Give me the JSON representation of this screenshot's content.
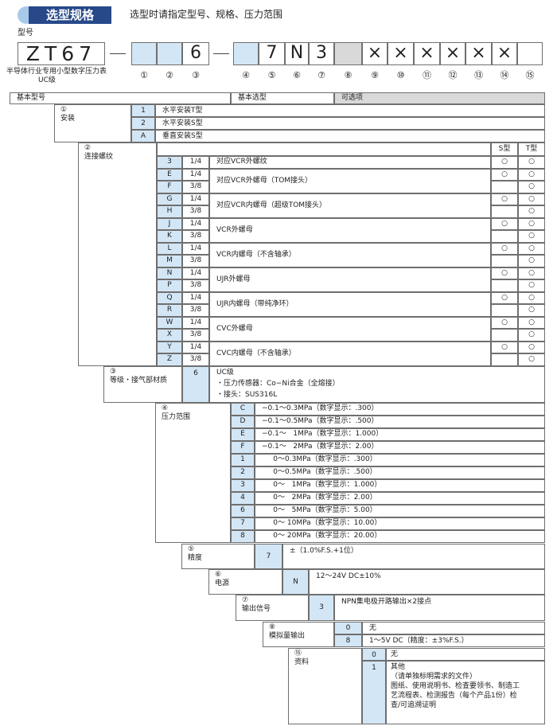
{
  "header": {
    "title": "选型规格",
    "subtitle": "选型时请指定型号、规格、压力范围"
  },
  "model": {
    "label": "型号",
    "base_code": "ZT67",
    "caption": [
      "半导体行业专用小型数字压力表",
      "UC级"
    ],
    "positions": [
      {
        "num": "①"
      },
      {
        "num": "②"
      },
      {
        "num": "③",
        "code": "6"
      },
      {
        "num": "④"
      },
      {
        "num": "⑤",
        "code": "7"
      },
      {
        "num": "⑥",
        "code": "N"
      },
      {
        "num": "⑦",
        "code": "3"
      },
      {
        "num": "⑧"
      },
      {
        "num": "⑨",
        "code": "×"
      },
      {
        "num": "⑩",
        "code": "×"
      },
      {
        "num": "⑪",
        "code": "×"
      },
      {
        "num": "⑫",
        "code": "×"
      },
      {
        "num": "⑬",
        "code": "×"
      },
      {
        "num": "⑭",
        "code": "×"
      },
      {
        "num": "⑮"
      }
    ]
  },
  "table": {
    "headers": [
      "基本型号",
      "基本选型",
      "可选项"
    ],
    "mounting": {
      "num": "①",
      "label": "安装",
      "options": [
        {
          "code": "1",
          "desc": "水平安装T型"
        },
        {
          "code": "2",
          "desc": "水平安装S型"
        },
        {
          "code": "A",
          "desc": "垂直安装S型"
        }
      ]
    },
    "thread": {
      "num": "②",
      "label": "连接螺纹",
      "columns": [
        "S型",
        "T型"
      ],
      "groups": [
        {
          "desc": "对应VCR外螺纹",
          "rows": [
            {
              "code": "3",
              "size": "1/4",
              "s": "○",
              "t": "○"
            }
          ]
        },
        {
          "desc": "对应VCR外螺母（TOM接头）",
          "rows": [
            {
              "code": "E",
              "size": "1/4",
              "s": "○",
              "t": "○"
            },
            {
              "code": "F",
              "size": "3/8",
              "t": "○"
            }
          ]
        },
        {
          "desc": "对应VCR内螺母（超级TOM接头）",
          "rows": [
            {
              "code": "G",
              "size": "1/4",
              "s": "○",
              "t": "○"
            },
            {
              "code": "H",
              "size": "3/8",
              "t": "○"
            }
          ]
        },
        {
          "desc": "VCR外螺母",
          "rows": [
            {
              "code": "J",
              "size": "1/4",
              "s": "○",
              "t": "○"
            },
            {
              "code": "K",
              "size": "3/8",
              "t": "○"
            }
          ]
        },
        {
          "desc": "VCR内螺母（不含轴承）",
          "rows": [
            {
              "code": "L",
              "size": "1/4",
              "s": "○",
              "t": "○"
            },
            {
              "code": "M",
              "size": "3/8",
              "t": "○"
            }
          ]
        },
        {
          "desc": "UJR外螺母",
          "rows": [
            {
              "code": "N",
              "size": "1/4",
              "s": "○",
              "t": "○"
            },
            {
              "code": "P",
              "size": "3/8",
              "t": "○"
            }
          ]
        },
        {
          "desc": "UJR内螺母（带纯净环）",
          "rows": [
            {
              "code": "Q",
              "size": "1/4",
              "s": "○",
              "t": "○"
            },
            {
              "code": "R",
              "size": "3/8",
              "t": "○"
            }
          ]
        },
        {
          "desc": "CVC外螺母",
          "rows": [
            {
              "code": "W",
              "size": "1/4",
              "s": "○",
              "t": "○"
            },
            {
              "code": "X",
              "size": "3/8",
              "t": "○"
            }
          ]
        },
        {
          "desc": "CVC内螺母（不含轴承）",
          "rows": [
            {
              "code": "Y",
              "size": "1/4",
              "s": "○",
              "t": "○"
            },
            {
              "code": "Z",
              "size": "3/8",
              "t": "○"
            }
          ]
        }
      ]
    },
    "grade": {
      "num": "③",
      "label": "等级・接气部材质",
      "code": "6",
      "lines": [
        "UC级",
        "・压力传感器：Co−Ni合金（全熔接）",
        "・接头：SUS316L"
      ]
    },
    "pressure": {
      "num": "④",
      "label": "压力范围",
      "options": [
        {
          "code": "C",
          "desc": "−0.1～0.3MPa（数字显示：.300）"
        },
        {
          "code": "D",
          "desc": "−0.1～0.5MPa（数字显示：.500）"
        },
        {
          "code": "E",
          "desc": "−0.1～   1MPa（数字显示：1.000）"
        },
        {
          "code": "F",
          "desc": "−0.1～   2MPa（数字显示：2.00）"
        },
        {
          "code": "1",
          "desc": "     0～0.3MPa（数字显示：.300）"
        },
        {
          "code": "2",
          "desc": "     0～0.5MPa（数字显示：.500）"
        },
        {
          "code": "3",
          "desc": "     0～   1MPa（数字显示：1.000）"
        },
        {
          "code": "4",
          "desc": "     0～   2MPa（数字显示：2.00）"
        },
        {
          "code": "6",
          "desc": "     0～   5MPa（数字显示：5.00）"
        },
        {
          "code": "7",
          "desc": "     0～ 10MPa（数字显示：10.00）"
        },
        {
          "code": "8",
          "desc": "     0～ 20MPa（数字显示：20.00）"
        }
      ]
    },
    "accuracy": {
      "num": "⑤",
      "label": "精度",
      "options": [
        {
          "code": "7",
          "desc": "±（1.0%F.S.+1位）"
        }
      ]
    },
    "power": {
      "num": "⑥",
      "label": "电源",
      "options": [
        {
          "code": "N",
          "desc": "12～24V DC±10%"
        }
      ]
    },
    "output": {
      "num": "⑦",
      "label": "输出信号",
      "options": [
        {
          "code": "3",
          "desc": "NPN集电极开路输出×2接点"
        }
      ]
    },
    "analog": {
      "num": "⑧",
      "label": "模拟量输出",
      "options": [
        {
          "code": "0",
          "desc": "无"
        },
        {
          "code": "8",
          "desc": "1～5V DC（精度：±3%F.S.）"
        }
      ]
    },
    "documents": {
      "num": "⑮",
      "label": "资料",
      "options": [
        {
          "code": "0",
          "lines": [
            "无"
          ]
        },
        {
          "code": "1",
          "lines": [
            "其他",
            "（请单独标明需求的文件）",
            "图纸、使用说明书、检查要领书、制造工",
            "艺流程表、检测报告（每个产品1份）检",
            "查/可追溯证明"
          ]
        }
      ]
    }
  }
}
